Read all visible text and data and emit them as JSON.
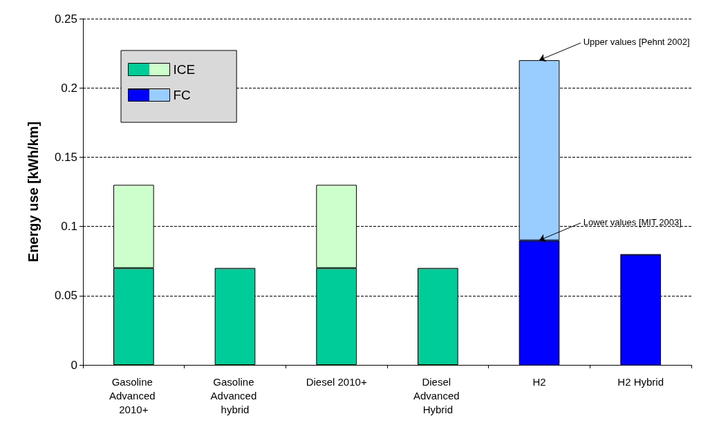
{
  "chart_data": {
    "type": "bar",
    "stacked": true,
    "ylabel": "Energy use [kWh/km]",
    "categories": [
      "Gasoline Advanced 2010+",
      "Gasoline Advanced hybrid",
      "Diesel 2010+",
      "Diesel Advanced Hybrid",
      "H2",
      "H2 Hybrid"
    ],
    "series": [
      {
        "name": "ICE",
        "color": "#00cc99",
        "values": [
          0.07,
          0.07,
          0.07,
          0.07,
          null,
          null
        ]
      },
      {
        "name": "FC",
        "color": "#0000ff",
        "values": [
          null,
          null,
          null,
          null,
          0.09,
          0.08
        ]
      },
      {
        "color": "#ccffcc",
        "values": [
          0.06,
          null,
          0.06,
          null,
          null,
          null
        ]
      },
      {
        "color": "#99ccff",
        "values": [
          null,
          null,
          null,
          null,
          0.13,
          null
        ]
      }
    ],
    "ylim": [
      0,
      0.25
    ],
    "yticks": [
      0,
      0.05,
      0.1,
      0.15,
      0.2,
      0.25
    ],
    "grid": "y",
    "legend": "top left",
    "annotations": [
      {
        "text": "Upper values [Pehnt 2002]",
        "x": "H2",
        "y": 0.22
      },
      {
        "text": "Lower values [MIT 2003]",
        "x": "H2",
        "y": 0.09
      }
    ]
  }
}
